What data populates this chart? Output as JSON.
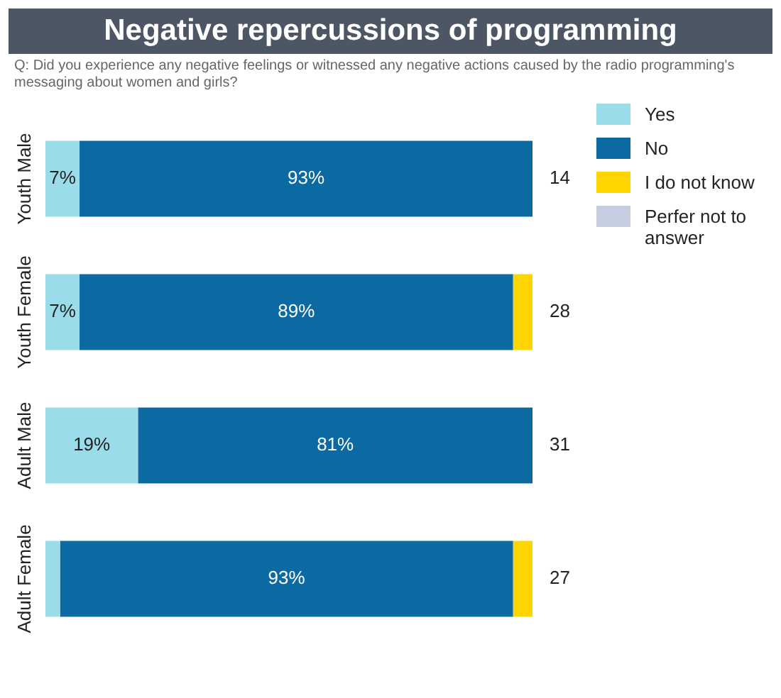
{
  "chart_data": {
    "type": "bar",
    "orientation": "horizontal",
    "stacked": true,
    "title": "Negative repercussions of programming",
    "subtitle": "Q: Did you experience any negative feelings or witnessed any negative actions caused by the radio programming's messaging about women and girls?",
    "categories": [
      "Youth Male",
      "Youth Female",
      "Adult Male",
      "Adult Female"
    ],
    "series": [
      {
        "name": "Yes",
        "color": "#9bdcea",
        "values": [
          7,
          7,
          19,
          3
        ],
        "value_labels": [
          "7%",
          "7%",
          "19%",
          null
        ]
      },
      {
        "name": "No",
        "color": "#0a6aa1",
        "values": [
          93,
          89,
          81,
          93
        ],
        "value_labels": [
          "93%",
          "89%",
          "81%",
          "93%"
        ]
      },
      {
        "name": "I do not know",
        "color": "#ffd500",
        "values": [
          null,
          4,
          null,
          4
        ]
      },
      {
        "name": "Perfer not to answer",
        "color": "#c5cde0",
        "values": [
          null,
          null,
          null,
          null
        ]
      }
    ],
    "xlim": [
      0,
      100
    ],
    "tick_labels": "y",
    "legend": "right",
    "annotations": [
      "14",
      "28",
      "31",
      "27"
    ]
  }
}
